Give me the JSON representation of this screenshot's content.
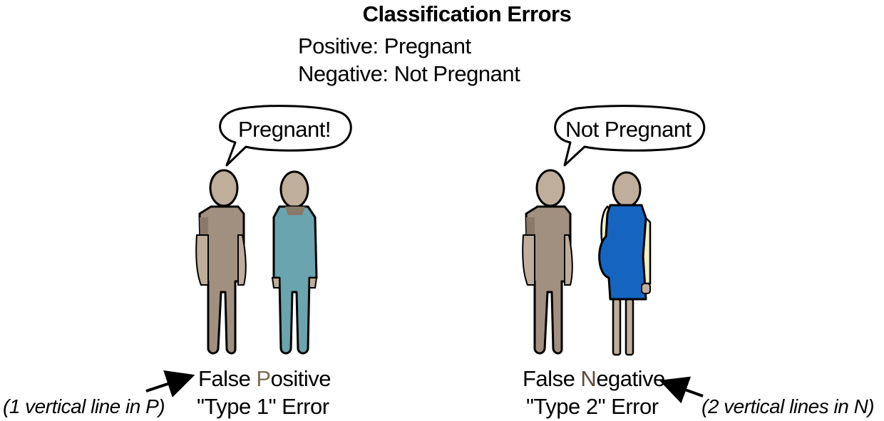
{
  "title": "Classification Errors",
  "legend": {
    "positive": "Positive: Pregnant",
    "negative": "Negative: Not Pregnant"
  },
  "left_panel": {
    "speech": "Pregnant!",
    "caption_line1_a": "False ",
    "caption_line1_b": "P",
    "caption_line1_c": "ositive",
    "caption_line2": "\"Type 1\" Error",
    "note": "(1 vertical line in P)"
  },
  "right_panel": {
    "speech": "Not Pregnant",
    "caption_line1_a": "False ",
    "caption_line1_b": "N",
    "caption_line1_c": "egative",
    "caption_line2": "\"Type 2\" Error",
    "note": "(2 vertical lines in N)"
  },
  "colors": {
    "skin": "#bfae9b",
    "man_body": "#a18f80",
    "man_shade": "#8a7868",
    "woman_teal": "#6aa4ae",
    "woman_blue": "#1565c0",
    "sleeve_cream": "#f3f0c6",
    "outline": "#000000"
  }
}
